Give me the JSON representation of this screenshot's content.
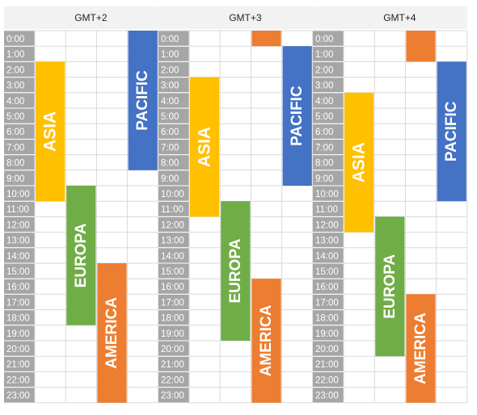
{
  "chart_data": {
    "type": "table",
    "title": "",
    "hours": [
      "0:00",
      "1:00",
      "2:00",
      "3:00",
      "4:00",
      "5:00",
      "6:00",
      "7:00",
      "8:00",
      "9:00",
      "10:00",
      "11:00",
      "12:00",
      "13:00",
      "14:00",
      "15:00",
      "16:00",
      "17:00",
      "18:00",
      "19:00",
      "20:00",
      "21:00",
      "22:00",
      "23:00"
    ],
    "series_colors": {
      "ASIA": "#FFC000",
      "EUROPA": "#70AD47",
      "AMERICA": "#ED7D31",
      "PACIFIC": "#4472C4"
    },
    "panels": [
      {
        "timezone": "GMT+2",
        "sessions": [
          {
            "name": "ASIA",
            "column": 1,
            "start_hour": 2,
            "end_hour": 11,
            "label": "ASIA"
          },
          {
            "name": "EUROPA",
            "column": 2,
            "start_hour": 10,
            "end_hour": 19,
            "label": "EUROPA"
          },
          {
            "name": "AMERICA",
            "column": 3,
            "start_hour": 15,
            "end_hour": 24,
            "label": "AMERICA"
          },
          {
            "name": "PACIFIC",
            "column": 4,
            "start_hour": 0,
            "end_hour": 9,
            "label": "PACIFIC"
          }
        ]
      },
      {
        "timezone": "GMT+3",
        "sessions": [
          {
            "name": "ASIA",
            "column": 1,
            "start_hour": 3,
            "end_hour": 12,
            "label": "ASIA"
          },
          {
            "name": "EUROPA",
            "column": 2,
            "start_hour": 11,
            "end_hour": 20,
            "label": "EUROPA"
          },
          {
            "name": "AMERICA",
            "column": 3,
            "start_hour": 16,
            "end_hour": 24,
            "label": "AMERICA"
          },
          {
            "name": "AMERICA",
            "column": 3,
            "start_hour": 0,
            "end_hour": 1,
            "label": ""
          },
          {
            "name": "PACIFIC",
            "column": 4,
            "start_hour": 1,
            "end_hour": 10,
            "label": "PACIFIC"
          }
        ]
      },
      {
        "timezone": "GMT+4",
        "sessions": [
          {
            "name": "ASIA",
            "column": 1,
            "start_hour": 4,
            "end_hour": 13,
            "label": "ASIA"
          },
          {
            "name": "EUROPA",
            "column": 2,
            "start_hour": 12,
            "end_hour": 21,
            "label": "EUROPA"
          },
          {
            "name": "AMERICA",
            "column": 3,
            "start_hour": 17,
            "end_hour": 24,
            "label": "AMERICA"
          },
          {
            "name": "AMERICA",
            "column": 3,
            "start_hour": 0,
            "end_hour": 2,
            "label": ""
          },
          {
            "name": "PACIFIC",
            "column": 4,
            "start_hour": 2,
            "end_hour": 11,
            "label": "PACIFIC"
          }
        ]
      }
    ]
  }
}
